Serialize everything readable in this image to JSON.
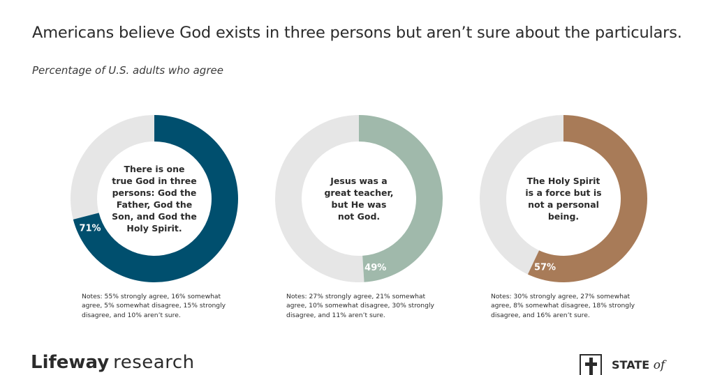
{
  "title": "Americans believe God exists in three persons but aren’t sure about the particulars.",
  "subtitle": "Percentage of U.S. adults who agree",
  "chart_data": [
    {
      "type": "pie",
      "value": 71,
      "value_label": "71%",
      "remainder": 29,
      "center_text": "There is one true God in three persons: God the Father, God the Son, and God the Holy Spirit.",
      "center_lines": [
        "There is one",
        "true God in three",
        "persons: God the",
        "Father, God the",
        "Son, and God the",
        "Holy Spirit."
      ],
      "note": "Notes: 55% strongly agree, 16% somewhat agree, 5% somewhat disagree, 15% strongly disagree, and 10% aren’t sure.",
      "color": "#004f6e",
      "track_color": "#e6e6e6"
    },
    {
      "type": "pie",
      "value": 49,
      "value_label": "49%",
      "remainder": 51,
      "center_text": "Jesus was a great teacher, but He was not God.",
      "center_lines": [
        "Jesus was a",
        "great teacher,",
        "but He was",
        "not God."
      ],
      "note": "Notes: 27% strongly agree, 21% somewhat agree, 10% somewhat disagree, 30% strongly disagree, and 11% aren’t sure.",
      "color": "#a0b9ab",
      "track_color": "#e6e6e6"
    },
    {
      "type": "pie",
      "value": 57,
      "value_label": "57%",
      "remainder": 43,
      "center_text": "The Holy Spirit is a force but is not a personal being.",
      "center_lines": [
        "The Holy Spirit",
        "is a force but is",
        "not a personal",
        "being."
      ],
      "note": "Notes: 30% strongly agree, 27% somewhat agree, 8% somewhat disagree, 18% strongly disagree, and 16% aren’t sure.",
      "color": "#a87b58",
      "track_color": "#e6e6e6"
    }
  ],
  "footer": {
    "brand_bold": "Lifeway",
    "brand_light": "research",
    "state_text": "STATE",
    "state_of": "of"
  }
}
